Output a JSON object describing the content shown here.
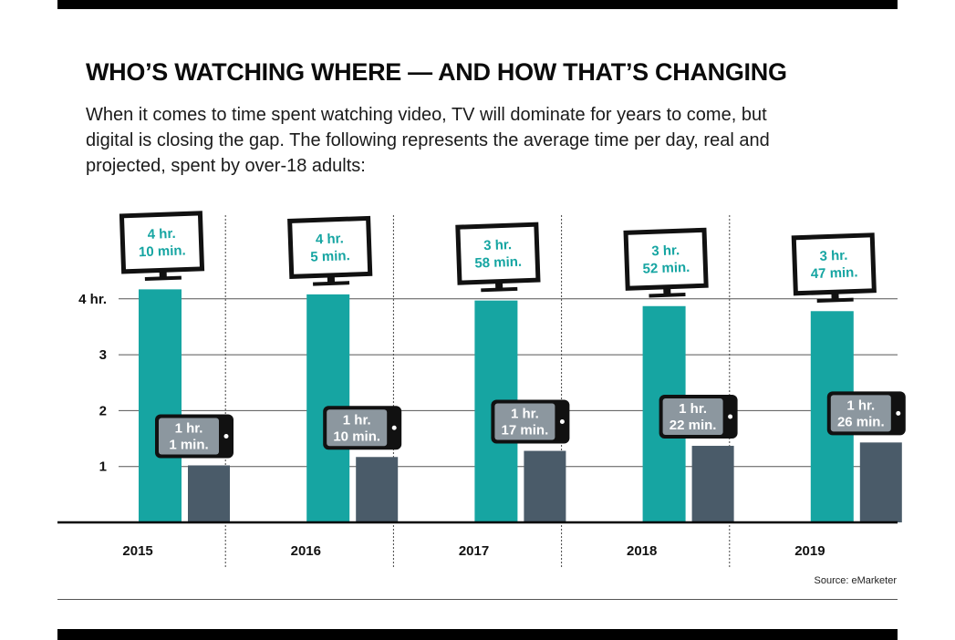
{
  "title": "WHO’S WATCHING WHERE — AND HOW THAT’S CHANGING",
  "subtitle": "When it comes to time spent watching video, TV will dominate for years to come, but digital is closing the gap. The following represents the average time per day, real and projected, spent by over-18 adults:",
  "source": "Source: eMarketer",
  "colors": {
    "tv": "#16a5a2",
    "digital": "#4a5b69",
    "tv_text": "#16a5a2",
    "phone_screen": "#8c979f",
    "device_body": "#111111"
  },
  "chart_data": {
    "type": "bar",
    "categories": [
      "2015",
      "2016",
      "2017",
      "2018",
      "2019"
    ],
    "series": [
      {
        "name": "",
        "device_icon": "tv-icon",
        "values": [
          4.17,
          4.08,
          3.97,
          3.87,
          3.78
        ],
        "labels": [
          [
            "4 hr.",
            "10 min."
          ],
          [
            "4 hr.",
            "5 min."
          ],
          [
            "3 hr.",
            "58 min."
          ],
          [
            "3 hr.",
            "52 min."
          ],
          [
            "3 hr.",
            "47 min."
          ]
        ]
      },
      {
        "name": "",
        "device_icon": "smartphone-icon",
        "values": [
          1.02,
          1.17,
          1.28,
          1.37,
          1.43
        ],
        "labels": [
          [
            "1 hr.",
            "1 min."
          ],
          [
            "1 hr.",
            "10 min."
          ],
          [
            "1 hr.",
            "17 min."
          ],
          [
            "1 hr.",
            "22 min."
          ],
          [
            "1 hr.",
            "26 min."
          ]
        ]
      }
    ],
    "ylim": [
      0,
      4
    ],
    "yticks": [
      1,
      2,
      3,
      4
    ],
    "ytick_labels": [
      "1",
      "2",
      "3",
      "4 hr."
    ],
    "xlabel": "",
    "ylabel": "",
    "grid": true
  }
}
